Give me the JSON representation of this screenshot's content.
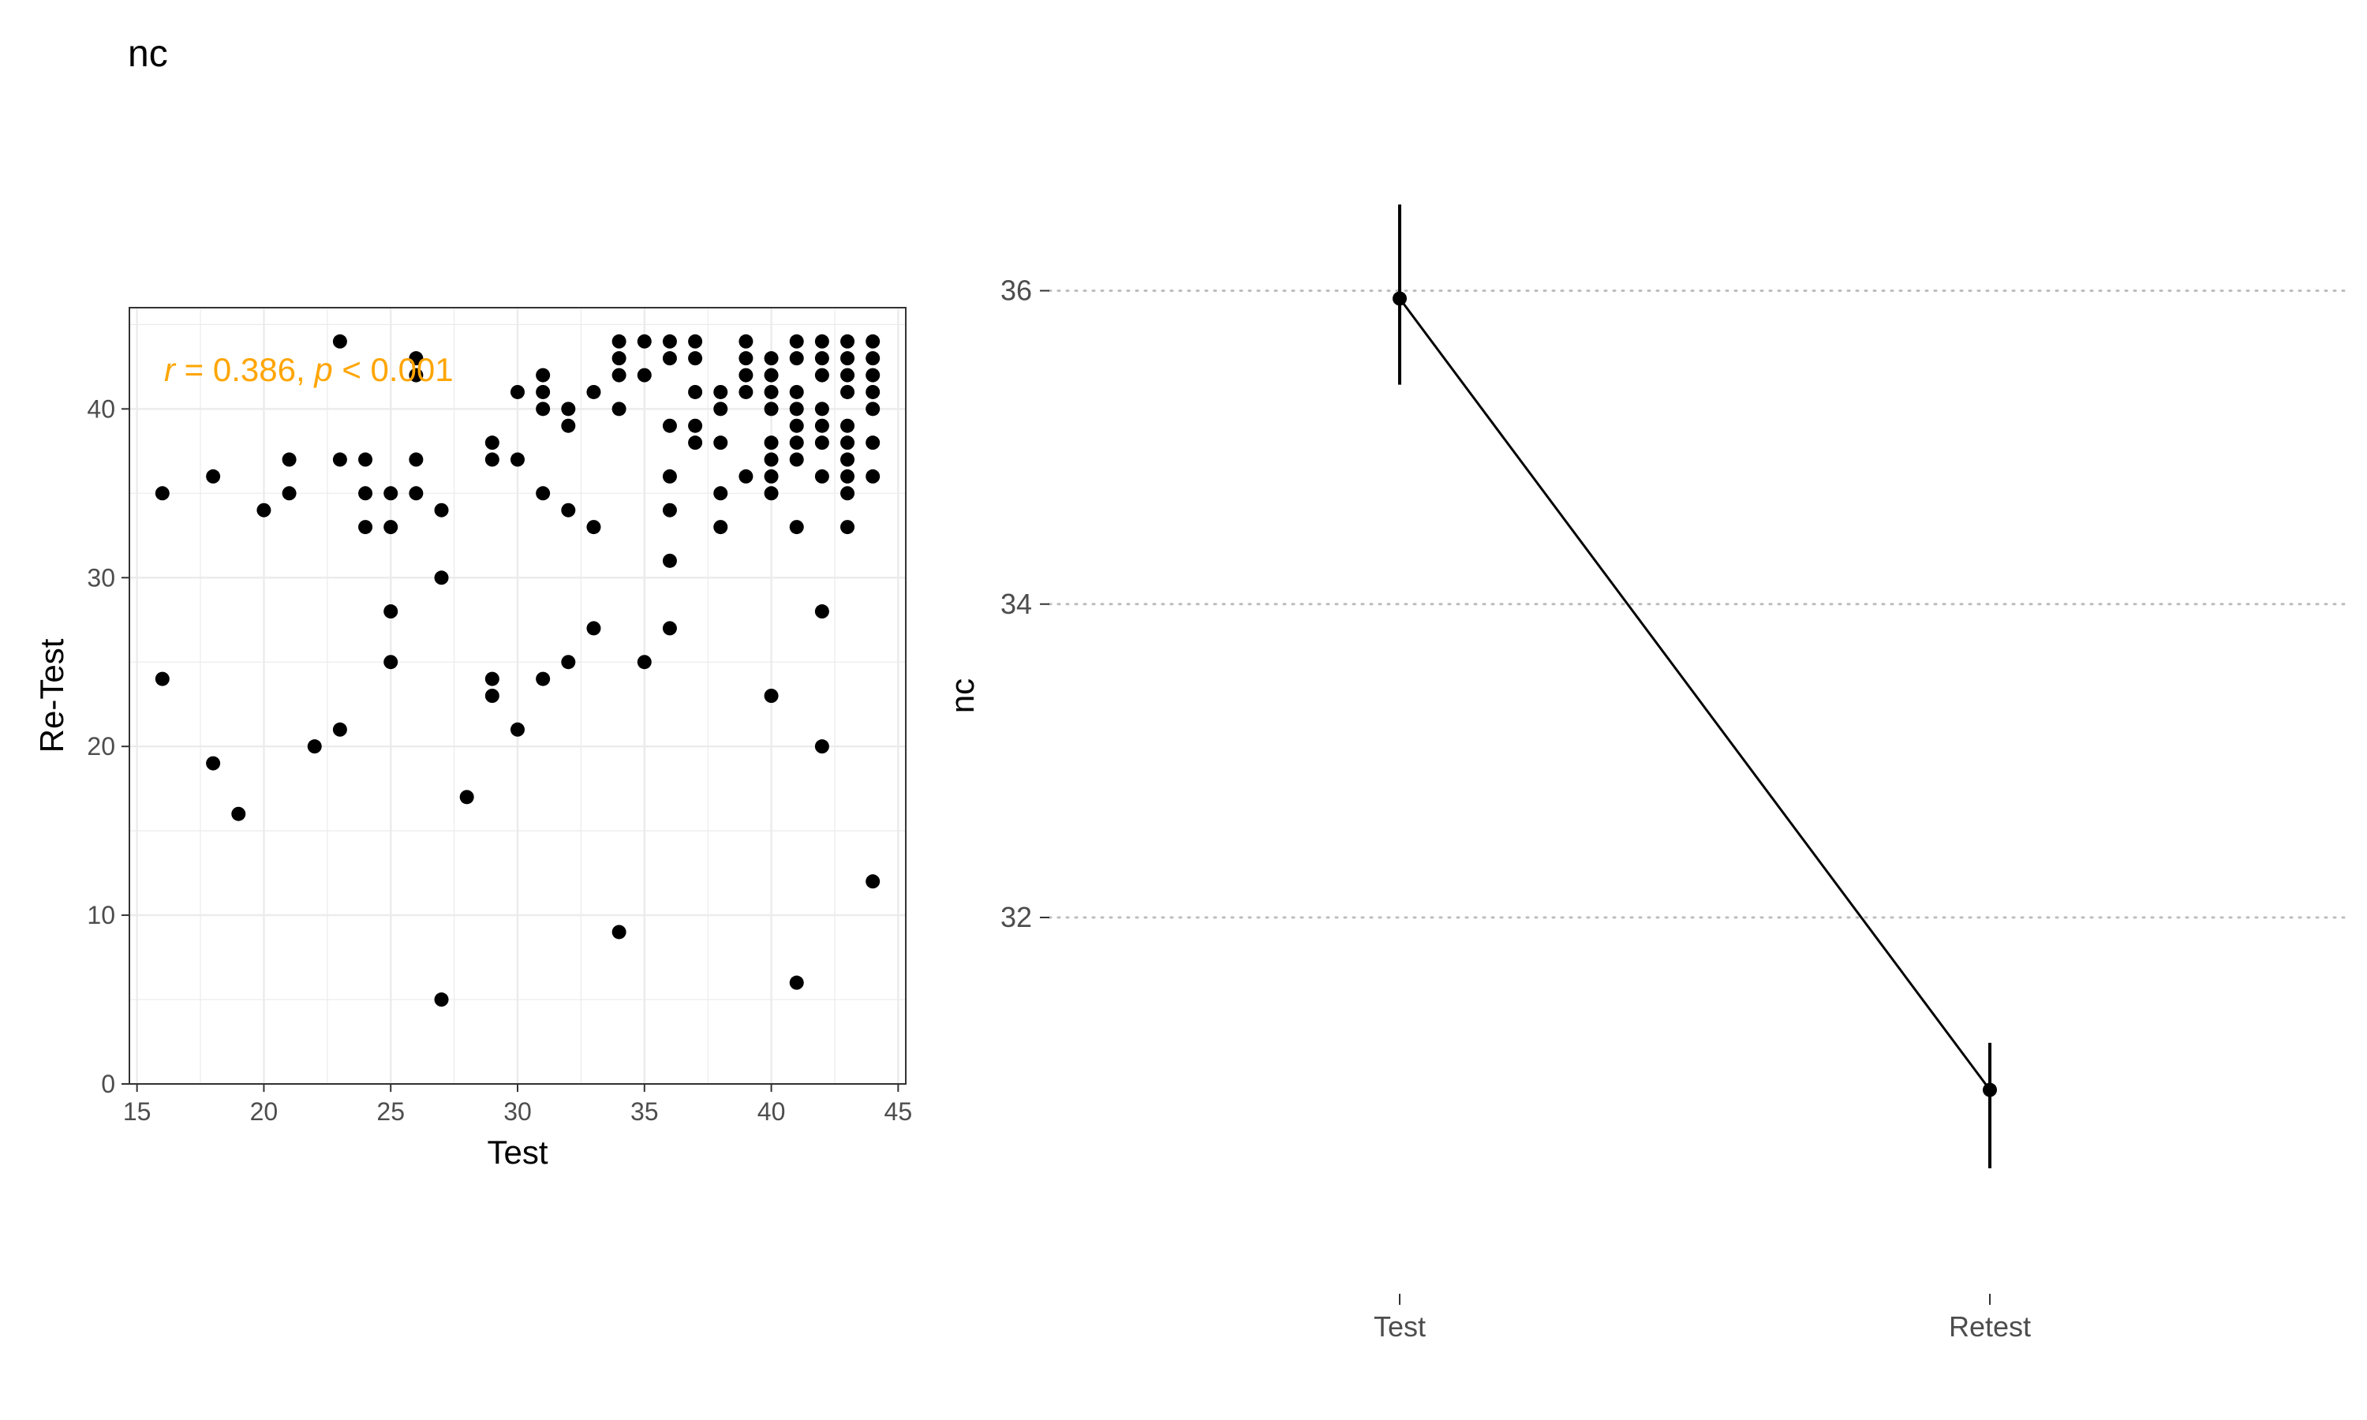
{
  "title": "nc",
  "colors": {
    "annotation": "#FFA500",
    "points": "#000000",
    "grid": "#ebebeb",
    "panel_border": "#333333",
    "dotted_grid": "#bdbdbd"
  },
  "chart_data": [
    {
      "type": "scatter",
      "xlabel": "Test",
      "ylabel": "Re-Test",
      "xlim": [
        14.7,
        45.3
      ],
      "ylim": [
        0,
        46
      ],
      "xticks": [
        "15",
        "20",
        "25",
        "30",
        "35",
        "40",
        "45"
      ],
      "yticks": [
        "0",
        "10",
        "20",
        "30",
        "40"
      ],
      "grid": true,
      "annotation": {
        "r_symbol": "r",
        "r_text": " = 0.386, ",
        "p_symbol": "p",
        "p_text": " < 0.001"
      },
      "points": [
        [
          16,
          35
        ],
        [
          16,
          24
        ],
        [
          18,
          36
        ],
        [
          18,
          19
        ],
        [
          19,
          16
        ],
        [
          20,
          34
        ],
        [
          21,
          37
        ],
        [
          21,
          35
        ],
        [
          22,
          20
        ],
        [
          23,
          44
        ],
        [
          23,
          37
        ],
        [
          23,
          21
        ],
        [
          24,
          37
        ],
        [
          24,
          35
        ],
        [
          24,
          33
        ],
        [
          25,
          35
        ],
        [
          25,
          33
        ],
        [
          25,
          28
        ],
        [
          25,
          25
        ],
        [
          26,
          43
        ],
        [
          26,
          42
        ],
        [
          26,
          37
        ],
        [
          26,
          35
        ],
        [
          27,
          34
        ],
        [
          27,
          30
        ],
        [
          27,
          5
        ],
        [
          28,
          17
        ],
        [
          29,
          38
        ],
        [
          29,
          37
        ],
        [
          29,
          24
        ],
        [
          29,
          23
        ],
        [
          30,
          41
        ],
        [
          30,
          37
        ],
        [
          30,
          21
        ],
        [
          31,
          42
        ],
        [
          31,
          41
        ],
        [
          31,
          40
        ],
        [
          31,
          35
        ],
        [
          31,
          24
        ],
        [
          32,
          40
        ],
        [
          32,
          39
        ],
        [
          32,
          34
        ],
        [
          32,
          25
        ],
        [
          33,
          41
        ],
        [
          33,
          33
        ],
        [
          33,
          27
        ],
        [
          34,
          44
        ],
        [
          34,
          43
        ],
        [
          34,
          42
        ],
        [
          34,
          40
        ],
        [
          34,
          9
        ],
        [
          35,
          44
        ],
        [
          35,
          42
        ],
        [
          35,
          25
        ],
        [
          36,
          44
        ],
        [
          36,
          43
        ],
        [
          36,
          39
        ],
        [
          36,
          36
        ],
        [
          36,
          34
        ],
        [
          36,
          31
        ],
        [
          36,
          27
        ],
        [
          37,
          44
        ],
        [
          37,
          43
        ],
        [
          37,
          41
        ],
        [
          37,
          39
        ],
        [
          37,
          38
        ],
        [
          38,
          41
        ],
        [
          38,
          40
        ],
        [
          38,
          38
        ],
        [
          38,
          35
        ],
        [
          38,
          33
        ],
        [
          39,
          44
        ],
        [
          39,
          43
        ],
        [
          39,
          42
        ],
        [
          39,
          41
        ],
        [
          39,
          36
        ],
        [
          40,
          43
        ],
        [
          40,
          42
        ],
        [
          40,
          41
        ],
        [
          40,
          40
        ],
        [
          40,
          38
        ],
        [
          40,
          37
        ],
        [
          40,
          36
        ],
        [
          40,
          35
        ],
        [
          40,
          23
        ],
        [
          41,
          44
        ],
        [
          41,
          43
        ],
        [
          41,
          41
        ],
        [
          41,
          40
        ],
        [
          41,
          39
        ],
        [
          41,
          38
        ],
        [
          41,
          37
        ],
        [
          41,
          33
        ],
        [
          41,
          6
        ],
        [
          42,
          44
        ],
        [
          42,
          43
        ],
        [
          42,
          42
        ],
        [
          42,
          40
        ],
        [
          42,
          39
        ],
        [
          42,
          38
        ],
        [
          42,
          36
        ],
        [
          42,
          28
        ],
        [
          42,
          20
        ],
        [
          43,
          44
        ],
        [
          43,
          43
        ],
        [
          43,
          42
        ],
        [
          43,
          41
        ],
        [
          43,
          39
        ],
        [
          43,
          38
        ],
        [
          43,
          37
        ],
        [
          43,
          36
        ],
        [
          43,
          35
        ],
        [
          43,
          33
        ],
        [
          44,
          44
        ],
        [
          44,
          43
        ],
        [
          44,
          42
        ],
        [
          44,
          41
        ],
        [
          44,
          40
        ],
        [
          44,
          38
        ],
        [
          44,
          36
        ],
        [
          44,
          12
        ]
      ]
    },
    {
      "type": "line",
      "xlabel": "",
      "ylabel": "nc",
      "categories": [
        "Test",
        "Retest"
      ],
      "values": [
        35.95,
        30.9
      ],
      "error_low": [
        35.4,
        30.4
      ],
      "error_high": [
        36.55,
        31.2
      ],
      "ylim": [
        29.8,
        37.1
      ],
      "yticks": [
        "32",
        "34",
        "36"
      ],
      "grid": "dotted-horizontal"
    }
  ]
}
